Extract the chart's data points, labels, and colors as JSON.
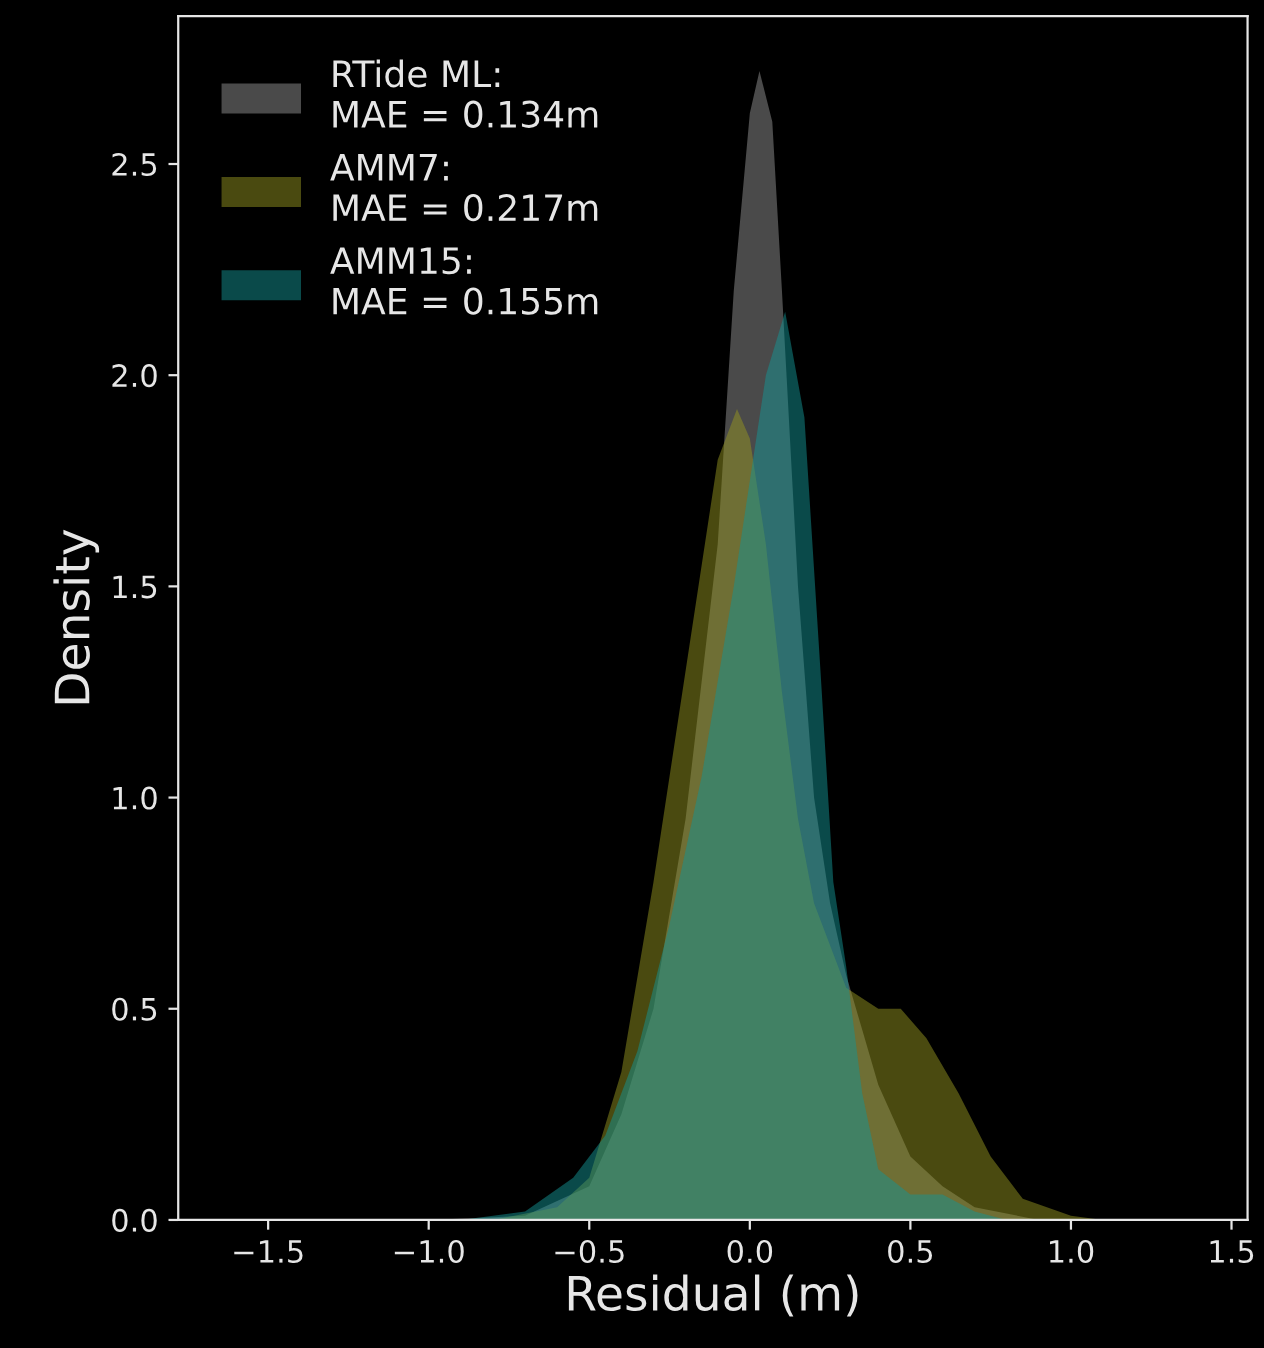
{
  "chart_data": {
    "type": "area",
    "xlabel": "Residual (m)",
    "ylabel": "Density",
    "xlim": [
      -1.78,
      1.55
    ],
    "ylim": [
      0,
      2.85
    ],
    "xticks": [
      {
        "value": -1.5,
        "label": "−1.5"
      },
      {
        "value": -1.0,
        "label": "−1.0"
      },
      {
        "value": -0.5,
        "label": "−0.5"
      },
      {
        "value": 0,
        "label": "0.0"
      },
      0.5,
      {
        "value": 1,
        "label": "1.0"
      },
      1.5
    ],
    "yticks": [
      {
        "value": 0,
        "label": "0.0"
      },
      0.5,
      {
        "value": 1,
        "label": "1.0"
      },
      1.5,
      {
        "value": 2,
        "label": "2.0"
      },
      2.5
    ],
    "grid": false,
    "legend": "top left",
    "series": [
      {
        "name": "RTide ML:\nMAE = 0.134m",
        "color": "#949494",
        "x": [
          -1.0,
          -0.7,
          -0.5,
          -0.4,
          -0.3,
          -0.2,
          -0.1,
          -0.05,
          0.0,
          0.03,
          0.07,
          0.1,
          0.15,
          0.2,
          0.25,
          0.3,
          0.35,
          0.4,
          0.5,
          0.6,
          0.7,
          0.9
        ],
        "values": [
          0,
          0.01,
          0.08,
          0.25,
          0.5,
          0.95,
          1.6,
          2.2,
          2.62,
          2.72,
          2.6,
          2.2,
          1.5,
          1.0,
          0.75,
          0.58,
          0.45,
          0.32,
          0.15,
          0.08,
          0.03,
          0
        ]
      },
      {
        "name": "AMM7:\nMAE = 0.217m",
        "color": "#949420",
        "x": [
          -0.8,
          -0.6,
          -0.5,
          -0.4,
          -0.3,
          -0.2,
          -0.1,
          -0.04,
          0.0,
          0.05,
          0.1,
          0.15,
          0.2,
          0.3,
          0.4,
          0.47,
          0.55,
          0.65,
          0.75,
          0.85,
          1.0,
          1.1
        ],
        "values": [
          0,
          0.03,
          0.1,
          0.35,
          0.8,
          1.3,
          1.8,
          1.92,
          1.85,
          1.6,
          1.25,
          0.95,
          0.75,
          0.55,
          0.5,
          0.5,
          0.43,
          0.3,
          0.15,
          0.05,
          0.01,
          0
        ]
      },
      {
        "name": "AMM15:\nMAE = 0.155m",
        "color": "#149494",
        "x": [
          -0.9,
          -0.7,
          -0.55,
          -0.45,
          -0.35,
          -0.25,
          -0.15,
          -0.05,
          0.05,
          0.11,
          0.17,
          0.22,
          0.26,
          0.3,
          0.35,
          0.4,
          0.5,
          0.6,
          0.7,
          0.8
        ],
        "values": [
          0,
          0.02,
          0.1,
          0.2,
          0.4,
          0.7,
          1.05,
          1.5,
          2.0,
          2.15,
          1.9,
          1.3,
          0.8,
          0.6,
          0.3,
          0.12,
          0.06,
          0.06,
          0.02,
          0
        ]
      }
    ]
  }
}
